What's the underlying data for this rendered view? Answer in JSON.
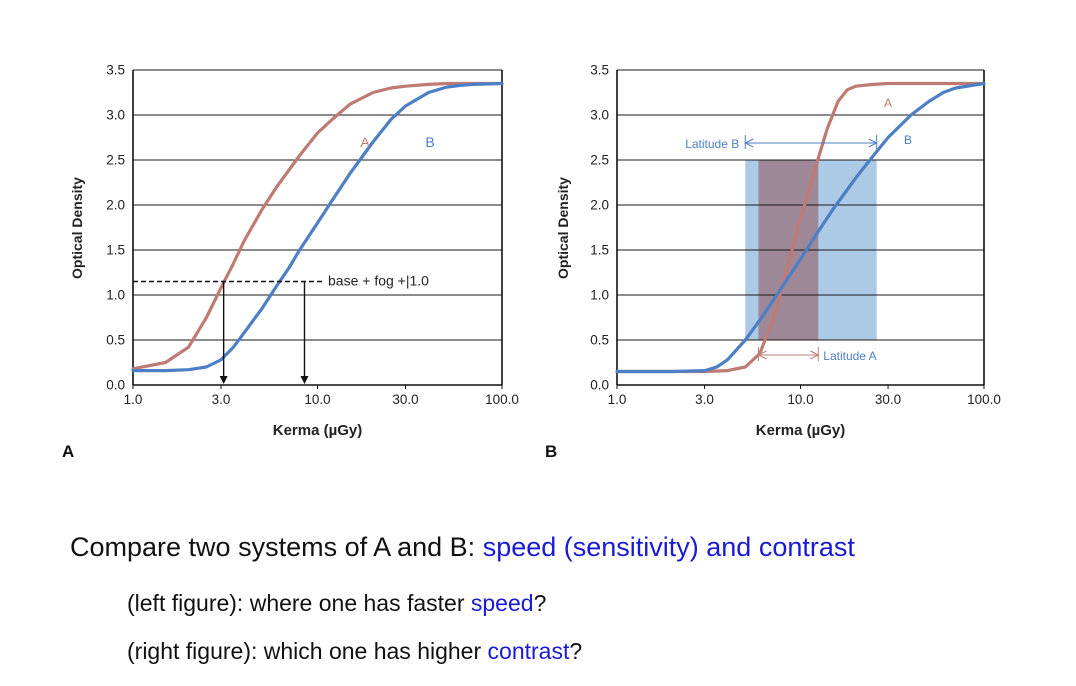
{
  "colors": {
    "curve_a": "#c07a74",
    "curve_b": "#4d7fc6",
    "latitude_b_band": "#9dbfe0",
    "latitude_a_band": "#9c7f8e",
    "highlight_text": "#1a1ad6"
  },
  "chart_data": [
    {
      "type": "line",
      "panel_label": "A",
      "xlabel": "Kerma (µGy)",
      "ylabel": "Optical Density",
      "x_scale": "log",
      "xlim": [
        1.0,
        100.0
      ],
      "ylim": [
        0.0,
        3.5
      ],
      "x_ticks": [
        "1.0",
        "3.0",
        "10.0",
        "30.0",
        "100.0"
      ],
      "y_ticks": [
        "0.0",
        "0.5",
        "1.0",
        "1.5",
        "2.0",
        "2.5",
        "3.0",
        "3.5"
      ],
      "grid": "horizontal",
      "series": [
        {
          "name": "A",
          "x": [
            1.0,
            1.5,
            2.0,
            2.5,
            3.0,
            3.5,
            4.0,
            5.0,
            6.0,
            8.0,
            10.0,
            12.0,
            15.0,
            20.0,
            25.0,
            30.0,
            40.0,
            50.0,
            70.0,
            100.0
          ],
          "y": [
            0.18,
            0.25,
            0.42,
            0.75,
            1.08,
            1.35,
            1.6,
            1.95,
            2.2,
            2.55,
            2.8,
            2.95,
            3.12,
            3.25,
            3.3,
            3.32,
            3.34,
            3.35,
            3.35,
            3.35
          ]
        },
        {
          "name": "B",
          "x": [
            1.0,
            1.5,
            2.0,
            2.5,
            3.0,
            3.5,
            4.0,
            5.0,
            6.0,
            7.0,
            8.0,
            10.0,
            12.0,
            15.0,
            20.0,
            25.0,
            30.0,
            40.0,
            50.0,
            60.0,
            70.0,
            100.0
          ],
          "y": [
            0.16,
            0.16,
            0.17,
            0.2,
            0.28,
            0.42,
            0.58,
            0.85,
            1.1,
            1.3,
            1.5,
            1.8,
            2.05,
            2.35,
            2.7,
            2.95,
            3.1,
            3.25,
            3.31,
            3.33,
            3.34,
            3.35
          ]
        }
      ],
      "annotations": {
        "reference_level": 1.15,
        "reference_label": "base + fog +|1.0",
        "arrow_a_x": 3.1,
        "arrow_b_x": 8.5
      }
    },
    {
      "type": "line",
      "panel_label": "B",
      "xlabel": "Kerma (µGy)",
      "ylabel": "Optical Density",
      "x_scale": "log",
      "xlim": [
        1.0,
        100.0
      ],
      "ylim": [
        0.0,
        3.5
      ],
      "x_ticks": [
        "1.0",
        "3.0",
        "10.0",
        "30.0",
        "100.0"
      ],
      "y_ticks": [
        "0.0",
        "0.5",
        "1.0",
        "1.5",
        "2.0",
        "2.5",
        "3.0",
        "3.5"
      ],
      "grid": "horizontal",
      "series": [
        {
          "name": "A",
          "x": [
            1.0,
            2.0,
            3.0,
            4.0,
            5.0,
            6.0,
            7.0,
            8.0,
            9.0,
            10.0,
            12.0,
            14.0,
            16.0,
            18.0,
            20.0,
            25.0,
            30.0,
            50.0,
            100.0
          ],
          "y": [
            0.15,
            0.15,
            0.15,
            0.16,
            0.2,
            0.35,
            0.7,
            1.1,
            1.5,
            1.85,
            2.4,
            2.85,
            3.15,
            3.28,
            3.32,
            3.34,
            3.35,
            3.35,
            3.35
          ]
        },
        {
          "name": "B",
          "x": [
            1.0,
            2.0,
            3.0,
            3.5,
            4.0,
            5.0,
            6.0,
            7.0,
            8.0,
            10.0,
            12.0,
            15.0,
            20.0,
            25.0,
            30.0,
            40.0,
            50.0,
            60.0,
            70.0,
            100.0
          ],
          "y": [
            0.15,
            0.15,
            0.16,
            0.2,
            0.28,
            0.5,
            0.72,
            0.92,
            1.1,
            1.4,
            1.65,
            1.95,
            2.3,
            2.55,
            2.75,
            3.0,
            3.15,
            3.25,
            3.3,
            3.35
          ]
        }
      ],
      "annotations": {
        "latitude_b": {
          "label": "Latitude B",
          "x_range": [
            5.0,
            26.0
          ],
          "y_range": [
            0.5,
            2.5
          ]
        },
        "latitude_a": {
          "label": "Latitude A",
          "x_range": [
            5.9,
            12.5
          ],
          "y_range": [
            0.5,
            2.5
          ]
        }
      }
    }
  ],
  "question": {
    "title_prefix": "Compare two systems of A and B: ",
    "title_highlight": "speed (sensitivity) and contrast",
    "line1_prefix": "(left figure):  where one has faster ",
    "line1_highlight": "speed",
    "line1_suffix": "?",
    "line2_prefix": "(right figure): which one has higher ",
    "line2_highlight": "contrast",
    "line2_suffix": "?"
  }
}
